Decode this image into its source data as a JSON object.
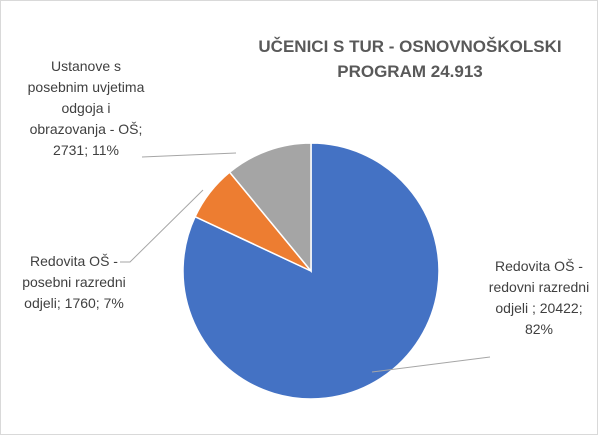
{
  "chart_data": {
    "type": "pie",
    "title": "UČENICI S TUR - OSNOVNOŠKOLSKI PROGRAM 24.913",
    "categories": [
      "Redovita OŠ - redovni razredni odjeli ",
      "Redovita OŠ - posebni razredni odjeli",
      "Ustanove s posebnim uvjetima odgoja i obrazovanja - OŠ"
    ],
    "values": [
      20422,
      1760,
      2731
    ],
    "value_labels": [
      "; 20422; 82%",
      "; 1760; 7%",
      "; 2731; 11%"
    ],
    "colors": [
      "#4472c4",
      "#ed7d31",
      "#a5a5a5"
    ]
  }
}
